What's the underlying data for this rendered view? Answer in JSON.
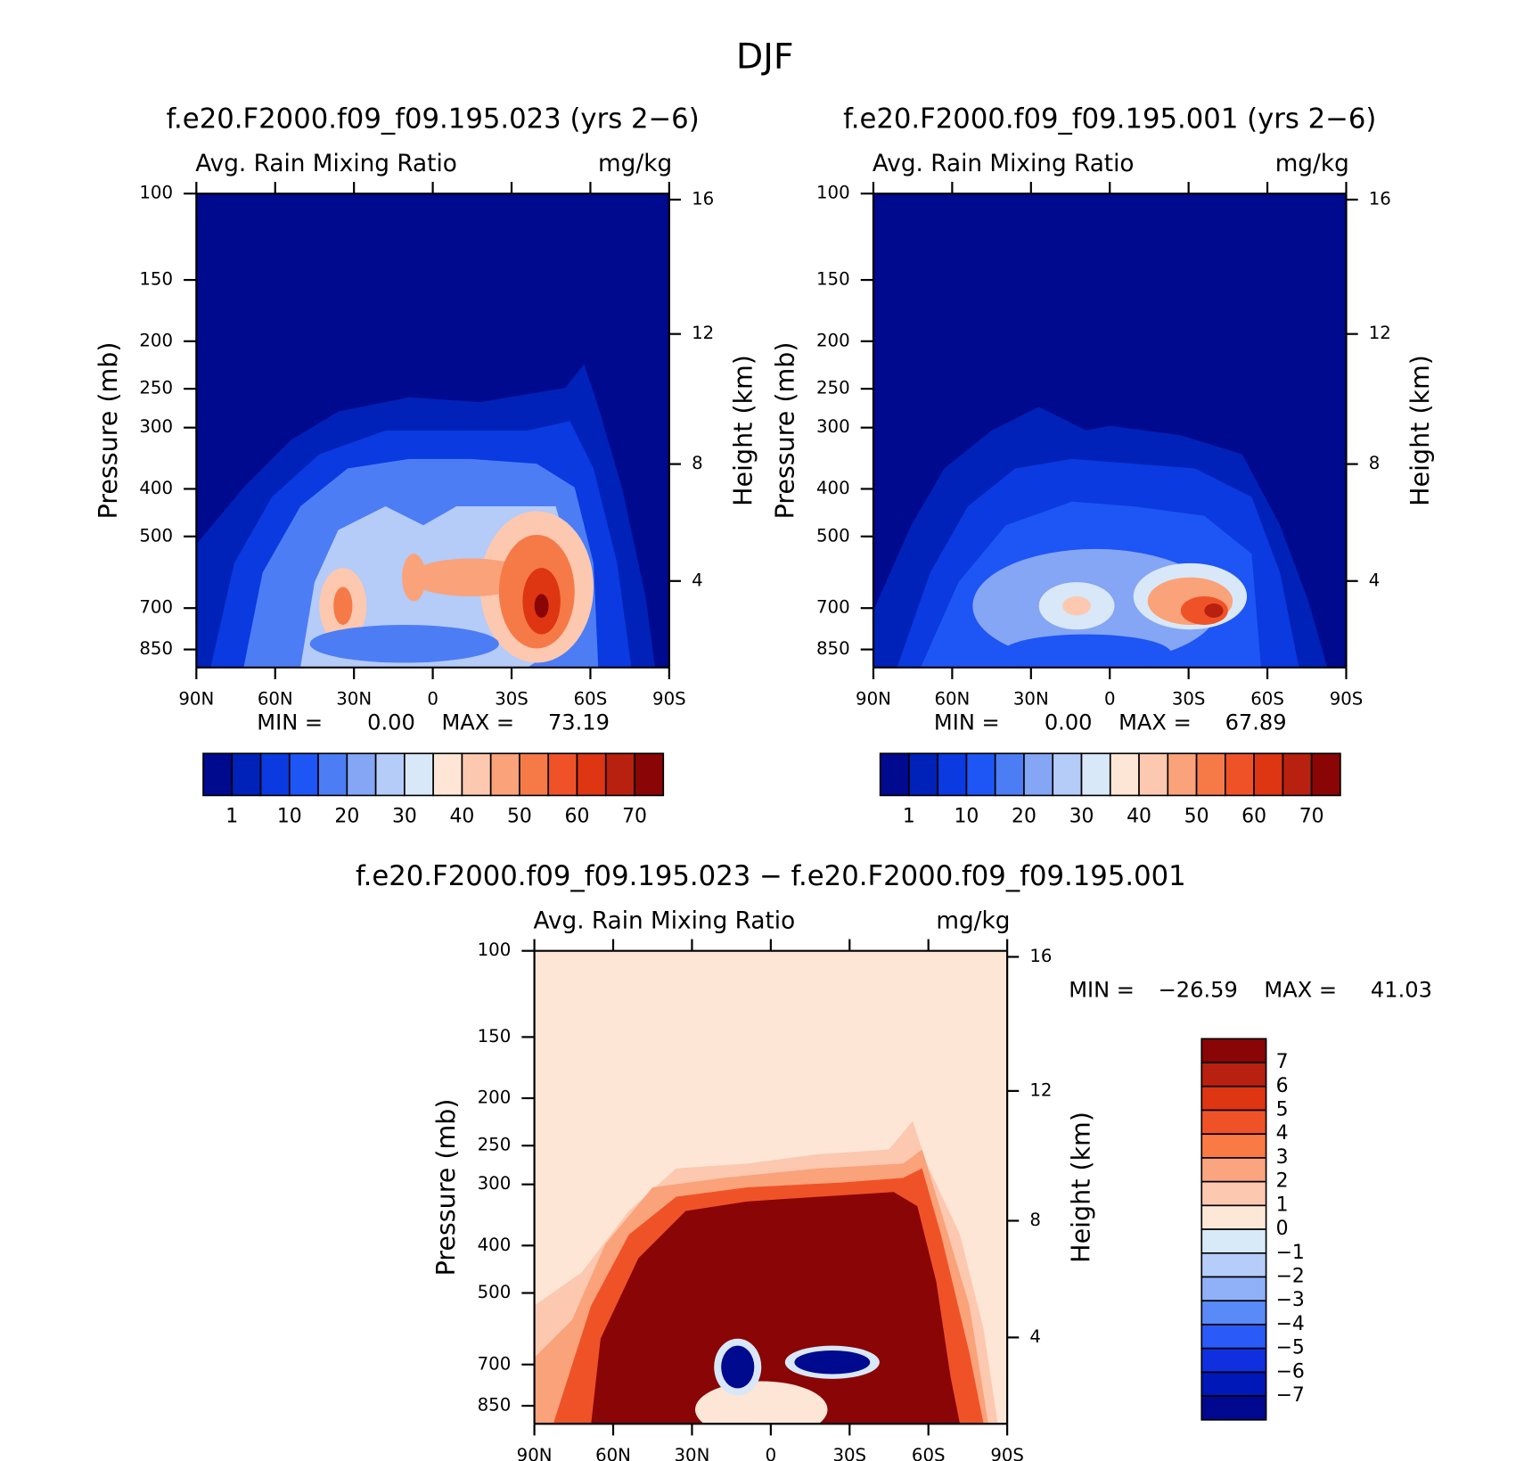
{
  "title": "DJF",
  "chart_data": [
    {
      "type": "contour",
      "title": "f.e20.F2000.f09_f09.195.023 (yrs 2−6)",
      "subtitle": "Avg. Rain Mixing Ratio",
      "units": "mg/kg",
      "ylabel": "Pressure (mb)",
      "y2label": "Height (km)",
      "xlim": [
        90,
        -90
      ],
      "xticks": [
        {
          "value": 90,
          "label": "90N"
        },
        {
          "value": 60,
          "label": "60N"
        },
        {
          "value": 30,
          "label": "30N"
        },
        0,
        {
          "value": -30,
          "label": "30S"
        },
        {
          "value": -60,
          "label": "60S"
        },
        {
          "value": -90,
          "label": "90S"
        }
      ],
      "ylim": [
        100,
        925
      ],
      "yscale": "log",
      "yticks": [
        100,
        150,
        200,
        250,
        300,
        400,
        500,
        700,
        850
      ],
      "y2lim": [
        16.18,
        0.76
      ],
      "y2_mapping": "standard-atmosphere",
      "y2ticks": [
        4,
        8,
        12,
        16
      ],
      "stats": {
        "names": [
          "MIN =",
          "MAX ="
        ],
        "values": [
          0,
          73.19
        ],
        "value_labels": [
          "0.00",
          "73.19"
        ]
      },
      "colorbar": {
        "orientation": "horizontal",
        "colors": [
          "#000a8f",
          "#0022b8",
          "#0a3ae0",
          "#1e55f5",
          "#4d7df5",
          "#85a5f5",
          "#b5cbf8",
          "#d8e8f8",
          "#fde6d6",
          "#fcc8b0",
          "#faa27a",
          "#f57a48",
          "#f05228",
          "#de3512",
          "#b82010",
          "#8a0505"
        ],
        "ticks": [
          1,
          10,
          20,
          30,
          40,
          50,
          60,
          70
        ]
      }
    },
    {
      "type": "contour",
      "title": "f.e20.F2000.f09_f09.195.001 (yrs 2−6)",
      "subtitle": "Avg. Rain Mixing Ratio",
      "units": "mg/kg",
      "ylabel": "Pressure (mb)",
      "y2label": "Height (km)",
      "xlim": [
        90,
        -90
      ],
      "xticks": [
        {
          "value": 90,
          "label": "90N"
        },
        {
          "value": 60,
          "label": "60N"
        },
        {
          "value": 30,
          "label": "30N"
        },
        0,
        {
          "value": -30,
          "label": "30S"
        },
        {
          "value": -60,
          "label": "60S"
        },
        {
          "value": -90,
          "label": "90S"
        }
      ],
      "ylim": [
        100,
        925
      ],
      "yscale": "log",
      "yticks": [
        100,
        150,
        200,
        250,
        300,
        400,
        500,
        700,
        850
      ],
      "y2lim": [
        16.18,
        0.76
      ],
      "y2_mapping": "standard-atmosphere",
      "y2ticks": [
        4,
        8,
        12,
        16
      ],
      "stats": {
        "names": [
          "MIN =",
          "MAX ="
        ],
        "values": [
          0,
          67.89
        ],
        "value_labels": [
          "0.00",
          "67.89"
        ]
      },
      "colorbar": {
        "orientation": "horizontal",
        "colors": [
          "#000a8f",
          "#0022b8",
          "#0a3ae0",
          "#1e55f5",
          "#4d7df5",
          "#85a5f5",
          "#b5cbf8",
          "#d8e8f8",
          "#fde6d6",
          "#fcc8b0",
          "#faa27a",
          "#f57a48",
          "#f05228",
          "#de3512",
          "#b82010",
          "#8a0505"
        ],
        "ticks": [
          1,
          10,
          20,
          30,
          40,
          50,
          60,
          70
        ]
      }
    },
    {
      "type": "contour",
      "title": "f.e20.F2000.f09_f09.195.023 − f.e20.F2000.f09_f09.195.001",
      "subtitle": "Avg. Rain Mixing Ratio",
      "units": "mg/kg",
      "ylabel": "Pressure (mb)",
      "y2label": "Height (km)",
      "xlim": [
        90,
        -90
      ],
      "xticks": [
        {
          "value": 90,
          "label": "90N"
        },
        {
          "value": 60,
          "label": "60N"
        },
        {
          "value": 30,
          "label": "30N"
        },
        0,
        {
          "value": -30,
          "label": "30S"
        },
        {
          "value": -60,
          "label": "60S"
        },
        {
          "value": -90,
          "label": "90S"
        }
      ],
      "ylim": [
        100,
        925
      ],
      "yscale": "log",
      "yticks": [
        100,
        150,
        200,
        250,
        300,
        400,
        500,
        700,
        850
      ],
      "y2lim": [
        16.18,
        0.76
      ],
      "y2_mapping": "standard-atmosphere",
      "y2ticks": [
        4,
        8,
        12,
        16
      ],
      "stats": {
        "names": [
          "MIN =",
          "MAX ="
        ],
        "values": [
          -26.59,
          41.03
        ],
        "value_labels": [
          "−26.59",
          "41.03"
        ]
      },
      "colorbar": {
        "orientation": "vertical",
        "colors": [
          "#8a0505",
          "#b82010",
          "#de3512",
          "#f05228",
          "#fa7a45",
          "#fba580",
          "#fcc8b0",
          "#fde8d8",
          "#d8eaf8",
          "#b5cdf8",
          "#90b0f8",
          "#5a8af8",
          "#2a5af8",
          "#1030e0",
          "#0018b8",
          "#000890"
        ],
        "ticks": [
          7,
          6,
          5,
          4,
          3,
          2,
          1,
          0,
          {
            "value": -1,
            "label": "−1"
          },
          {
            "value": -2,
            "label": "−2"
          },
          {
            "value": -3,
            "label": "−3"
          },
          {
            "value": -4,
            "label": "−4"
          },
          {
            "value": -5,
            "label": "−5"
          },
          {
            "value": -6,
            "label": "−6"
          },
          {
            "value": -7,
            "label": "−7"
          }
        ]
      }
    }
  ]
}
